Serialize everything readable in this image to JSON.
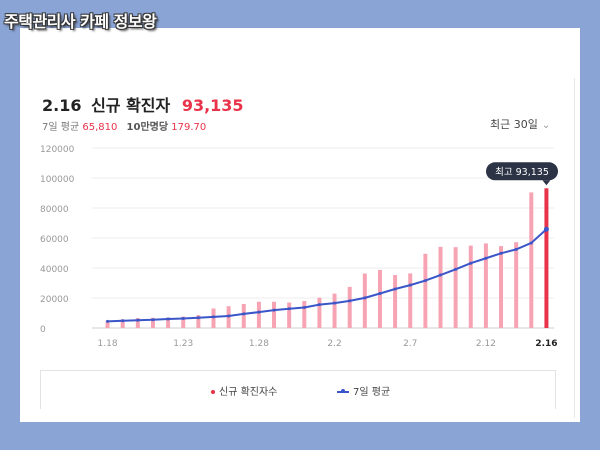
{
  "watermark": "주택관리사 카페 정보왕",
  "header": {
    "date": "2.16",
    "label": "신규 확진자",
    "count": "93,135"
  },
  "subheader": {
    "avg_label": "7일 평균",
    "avg_value": "65,810",
    "per100k_label": "10만명당",
    "per100k_value": "179.70"
  },
  "range_select": {
    "label": "최근 30일"
  },
  "tooltip": {
    "text": "최고 93,135"
  },
  "legend": {
    "new_cases": "신규 확진자수",
    "avg": "7일 평균"
  },
  "colors": {
    "bar": "#f6a4b3",
    "bar_highlight": "#e8334a",
    "line": "#3a56c9",
    "tooltip_bg": "#2b3345"
  },
  "chart_data": {
    "type": "bar",
    "x_tick_labels": [
      "1.18",
      "1.23",
      "1.28",
      "2.2",
      "2.7",
      "2.12",
      "2.16"
    ],
    "x": [
      "1.18",
      "1.19",
      "1.20",
      "1.21",
      "1.22",
      "1.23",
      "1.24",
      "1.25",
      "1.26",
      "1.27",
      "1.28",
      "1.29",
      "1.30",
      "1.31",
      "2.1",
      "2.2",
      "2.3",
      "2.4",
      "2.5",
      "2.6",
      "2.7",
      "2.8",
      "2.9",
      "2.10",
      "2.11",
      "2.12",
      "2.13",
      "2.14",
      "2.15",
      "2.16"
    ],
    "ylim": [
      0,
      120000
    ],
    "yticks": [
      0,
      20000,
      40000,
      60000,
      80000,
      100000,
      120000
    ],
    "series": [
      {
        "name": "신규 확진자수",
        "type": "bar",
        "values": [
          5000,
          5800,
          6600,
          6800,
          7000,
          7600,
          8600,
          13000,
          14500,
          16000,
          17500,
          17500,
          17000,
          18000,
          20200,
          22900,
          27400,
          36300,
          38700,
          35300,
          36400,
          49500,
          54100,
          53900,
          54900,
          56400,
          54600,
          57200,
          90400,
          93135
        ]
      },
      {
        "name": "7일 평균",
        "type": "line",
        "values": [
          4400,
          4800,
          5200,
          5500,
          6000,
          6300,
          6800,
          7400,
          8000,
          9400,
          10600,
          11900,
          12800,
          13700,
          15600,
          16600,
          18100,
          20100,
          23000,
          26000,
          28600,
          31600,
          35300,
          39100,
          43200,
          46500,
          49800,
          52400,
          56700,
          65810
        ]
      }
    ]
  }
}
